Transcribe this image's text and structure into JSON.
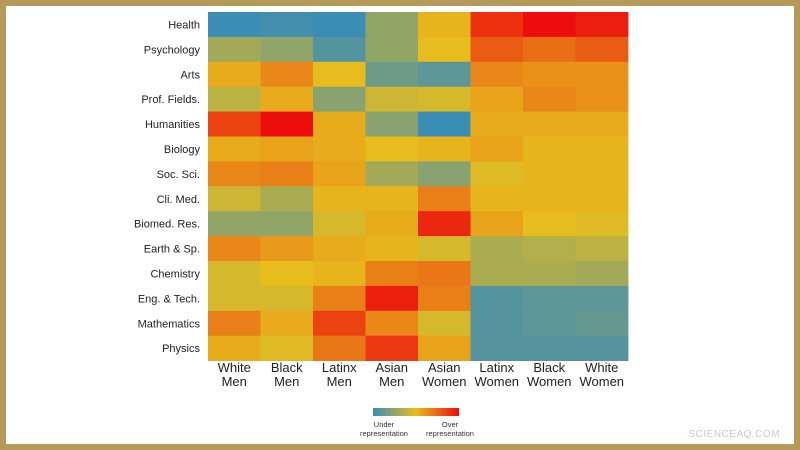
{
  "chart_data": {
    "type": "heatmap",
    "rows": [
      "Health",
      "Psychology",
      "Arts",
      "Prof. Fields.",
      "Humanities",
      "Biology",
      "Soc. Sci.",
      "Cli. Med.",
      "Biomed. Res.",
      "Earth & Sp.",
      "Chemistry",
      "Eng. & Tech.",
      "Mathematics",
      "Physics"
    ],
    "columns": [
      [
        "White",
        "Men"
      ],
      [
        "Black",
        "Men"
      ],
      [
        "Latinx",
        "Men"
      ],
      [
        "Asian",
        "Men"
      ],
      [
        "Asian",
        "Women"
      ],
      [
        "Latinx",
        "Women"
      ],
      [
        "Black",
        "Women"
      ],
      [
        "White",
        "Women"
      ]
    ],
    "value_range": [
      -1,
      1
    ],
    "values": [
      [
        -1.0,
        -0.95,
        -1.0,
        -0.5,
        0.05,
        0.8,
        1.0,
        0.9
      ],
      [
        -0.4,
        -0.5,
        -0.85,
        -0.5,
        0.0,
        0.55,
        0.45,
        0.55
      ],
      [
        0.1,
        0.3,
        0.0,
        -0.7,
        -0.8,
        0.3,
        0.25,
        0.25
      ],
      [
        -0.25,
        0.1,
        -0.55,
        -0.15,
        -0.1,
        0.15,
        0.3,
        0.25
      ],
      [
        0.7,
        1.0,
        0.1,
        -0.55,
        -1.0,
        0.1,
        0.1,
        0.1
      ],
      [
        0.1,
        0.15,
        0.1,
        0.0,
        0.05,
        0.15,
        0.05,
        0.05
      ],
      [
        0.3,
        0.35,
        0.15,
        -0.4,
        -0.55,
        -0.05,
        0.05,
        0.05
      ],
      [
        -0.15,
        -0.35,
        0.05,
        0.05,
        0.35,
        0.05,
        0.05,
        0.05
      ],
      [
        -0.5,
        -0.5,
        -0.1,
        0.1,
        0.85,
        0.15,
        0.0,
        -0.05
      ],
      [
        0.3,
        0.2,
        0.1,
        0.05,
        -0.1,
        -0.35,
        -0.3,
        -0.25
      ],
      [
        -0.1,
        0.0,
        0.05,
        0.35,
        0.4,
        -0.35,
        -0.35,
        -0.4
      ],
      [
        -0.1,
        -0.1,
        0.35,
        0.9,
        0.35,
        -0.85,
        -0.8,
        -0.8
      ],
      [
        0.35,
        0.1,
        0.7,
        0.3,
        -0.1,
        -0.85,
        -0.8,
        -0.75
      ],
      [
        0.1,
        -0.05,
        0.4,
        0.75,
        0.15,
        -0.85,
        -0.85,
        -0.85
      ]
    ],
    "colorscale": [
      "#3a8db5",
      "#e7bd1d",
      "#ed0d0d"
    ],
    "legend": {
      "low_label": [
        "Under",
        "representation"
      ],
      "high_label": [
        "Over",
        "representation"
      ],
      "placement": "bottom-center"
    }
  },
  "watermark": "SCIENCEAQ.COM"
}
